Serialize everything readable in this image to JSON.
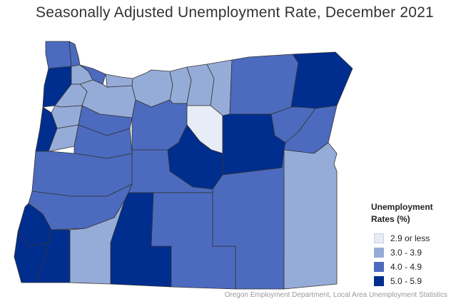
{
  "title": "Seasonally Adjusted Unemployment Rate, December 2021",
  "legend": {
    "title_line1": "Unemployment",
    "title_line2": "Rates (%)",
    "classes": [
      {
        "label": "2.9 or less",
        "color": "#e8ecf7"
      },
      {
        "label": "3.0 - 3.9",
        "color": "#96acd8"
      },
      {
        "label": "4.0 - 4.9",
        "color": "#4c6bbf"
      },
      {
        "label": "5.0 - 5.9",
        "color": "#002e8f"
      }
    ]
  },
  "counties": {
    "clatsop": 2,
    "columbia": 2,
    "tillamook": 3,
    "washington": 1,
    "multnomah": 2,
    "yamhill": 1,
    "polk": 1,
    "clackamas": 1,
    "hood-river": 1,
    "wasco": 1,
    "sherman": 1,
    "gilliam": 1,
    "morrow": 1,
    "umatilla": 2,
    "union": 2,
    "wallowa": 3,
    "lincoln": 3,
    "benton": 1,
    "marion": 2,
    "linn": 2,
    "jefferson": 2,
    "wheeler": 0,
    "grant": 3,
    "baker": 2,
    "lane": 2,
    "deschutes": 2,
    "crook": 3,
    "douglas": 2,
    "coos": 3,
    "curry": 3,
    "josephine": 3,
    "jackson": 1,
    "klamath": 3,
    "lake": 2,
    "harney": 2,
    "malheur": 1
  },
  "source": "Oregon Employment Department, Local Area Unemployment Statistics"
}
